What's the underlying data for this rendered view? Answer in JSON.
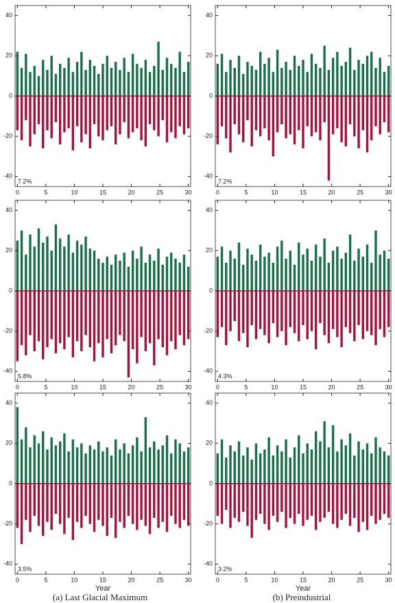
{
  "chart_data": [
    {
      "type": "spike",
      "annotation": "7.2%",
      "x": [
        0,
        0.75,
        1.5,
        2.25,
        3,
        3.75,
        4.5,
        5.25,
        6,
        6.75,
        7.5,
        8.25,
        9,
        9.75,
        10.5,
        11.25,
        12,
        12.75,
        13.5,
        14.25,
        15,
        15.75,
        16.5,
        17.25,
        18,
        18.75,
        19.5,
        20.25,
        21,
        21.75,
        22.5,
        23.25,
        24,
        24.75,
        25.5,
        26.25,
        27,
        27.75,
        28.5,
        29.25,
        30
      ],
      "series": [
        {
          "color": "#17704a",
          "values": [
            22,
            14,
            21,
            12,
            15,
            10,
            18,
            13,
            20,
            11,
            16,
            14,
            19,
            12,
            17,
            22,
            13,
            18,
            15,
            11,
            16,
            20,
            14,
            17,
            13,
            19,
            12,
            21,
            16,
            14,
            18,
            12,
            15,
            27,
            13,
            19,
            16,
            14,
            22,
            12,
            17
          ]
        },
        {
          "color": "#a8103c",
          "values": [
            -17,
            -22,
            -12,
            -25,
            -19,
            -14,
            -26,
            -17,
            -21,
            -13,
            -24,
            -18,
            -16,
            -27,
            -15,
            -23,
            -19,
            -26,
            -14,
            -20,
            -22,
            -17,
            -15,
            -24,
            -19,
            -13,
            -21,
            -18,
            -16,
            -22,
            -25,
            -14,
            -17,
            -20,
            -12,
            -23,
            -18,
            -21,
            -15,
            -19,
            -16
          ]
        }
      ],
      "xlim": [
        -0.4,
        30.4
      ],
      "xticks": [
        0,
        5,
        10,
        15,
        20,
        25,
        30
      ],
      "ylim": [
        -45,
        45
      ],
      "yticks": [
        -40,
        -20,
        0,
        20,
        40
      ]
    },
    {
      "type": "spike",
      "annotation": "7.2%",
      "x": [
        0,
        0.75,
        1.5,
        2.25,
        3,
        3.75,
        4.5,
        5.25,
        6,
        6.75,
        7.5,
        8.25,
        9,
        9.75,
        10.5,
        11.25,
        12,
        12.75,
        13.5,
        14.25,
        15,
        15.75,
        16.5,
        17.25,
        18,
        18.75,
        19.5,
        20.25,
        21,
        21.75,
        22.5,
        23.25,
        24,
        24.75,
        25.5,
        26.25,
        27,
        27.75,
        28.5,
        29.25,
        30
      ],
      "series": [
        {
          "color": "#17704a",
          "values": [
            16,
            21,
            12,
            18,
            14,
            20,
            11,
            17,
            15,
            13,
            22,
            16,
            19,
            12,
            23,
            14,
            17,
            13,
            20,
            15,
            18,
            12,
            21,
            16,
            14,
            25,
            13,
            19,
            22,
            15,
            17,
            24,
            13,
            18,
            16,
            20,
            22,
            14,
            19,
            12,
            15
          ]
        },
        {
          "color": "#a8103c",
          "values": [
            -24,
            -15,
            -21,
            -28,
            -14,
            -19,
            -23,
            -12,
            -25,
            -17,
            -20,
            -16,
            -22,
            -30,
            -18,
            -14,
            -21,
            -19,
            -24,
            -17,
            -26,
            -15,
            -20,
            -18,
            -22,
            -13,
            -42,
            -19,
            -16,
            -23,
            -25,
            -14,
            -20,
            -26,
            -17,
            -28,
            -22,
            -15,
            -19,
            -13,
            -18
          ]
        }
      ],
      "xlim": [
        -0.4,
        30.4
      ],
      "xticks": [
        0,
        5,
        10,
        15,
        20,
        25,
        30
      ],
      "ylim": [
        -45,
        45
      ],
      "yticks": [
        -40,
        -20,
        0,
        20,
        40
      ]
    },
    {
      "type": "spike",
      "annotation": "5.8%",
      "x": [
        0,
        0.75,
        1.5,
        2.25,
        3,
        3.75,
        4.5,
        5.25,
        6,
        6.75,
        7.5,
        8.25,
        9,
        9.75,
        10.5,
        11.25,
        12,
        12.75,
        13.5,
        14.25,
        15,
        15.75,
        16.5,
        17.25,
        18,
        18.75,
        19.5,
        20.25,
        21,
        21.75,
        22.5,
        23.25,
        24,
        24.75,
        25.5,
        26.25,
        27,
        27.75,
        28.5,
        29.25,
        30
      ],
      "series": [
        {
          "color": "#17704a",
          "values": [
            25,
            30,
            18,
            28,
            22,
            31,
            24,
            27,
            20,
            33,
            26,
            22,
            28,
            19,
            25,
            23,
            27,
            21,
            20,
            16,
            14,
            17,
            13,
            18,
            15,
            19,
            12,
            20,
            16,
            22,
            14,
            18,
            15,
            21,
            13,
            17,
            19,
            16,
            14,
            18,
            12
          ]
        },
        {
          "color": "#a8103c",
          "values": [
            -35,
            -27,
            -32,
            -22,
            -30,
            -25,
            -34,
            -28,
            -24,
            -31,
            -26,
            -29,
            -23,
            -33,
            -25,
            -30,
            -22,
            -28,
            -35,
            -26,
            -33,
            -24,
            -31,
            -27,
            -22,
            -25,
            -43,
            -29,
            -36,
            -23,
            -30,
            -26,
            -37,
            -24,
            -28,
            -32,
            -25,
            -29,
            -22,
            -27,
            -24
          ]
        }
      ],
      "xlim": [
        -0.4,
        30.4
      ],
      "xticks": [
        0,
        5,
        10,
        15,
        20,
        25,
        30
      ],
      "ylim": [
        -45,
        45
      ],
      "yticks": [
        -40,
        -20,
        0,
        20,
        40
      ]
    },
    {
      "type": "spike",
      "annotation": "4.3%",
      "x": [
        0,
        0.75,
        1.5,
        2.25,
        3,
        3.75,
        4.5,
        5.25,
        6,
        6.75,
        7.5,
        8.25,
        9,
        9.75,
        10.5,
        11.25,
        12,
        12.75,
        13.5,
        14.25,
        15,
        15.75,
        16.5,
        17.25,
        18,
        18.75,
        19.5,
        20.25,
        21,
        21.75,
        22.5,
        23.25,
        24,
        24.75,
        25.5,
        26.25,
        27,
        27.75,
        28.5,
        29.25,
        30
      ],
      "series": [
        {
          "color": "#17704a",
          "values": [
            17,
            22,
            14,
            20,
            16,
            24,
            13,
            21,
            18,
            15,
            23,
            17,
            19,
            14,
            22,
            25,
            16,
            20,
            13,
            24,
            18,
            21,
            15,
            23,
            17,
            26,
            14,
            20,
            22,
            16,
            19,
            28,
            15,
            21,
            17,
            23,
            14,
            30,
            18,
            20,
            16
          ]
        },
        {
          "color": "#a8103c",
          "values": [
            -23,
            -18,
            -27,
            -20,
            -15,
            -25,
            -21,
            -28,
            -17,
            -24,
            -19,
            -22,
            -26,
            -16,
            -23,
            -20,
            -27,
            -18,
            -21,
            -25,
            -17,
            -24,
            -20,
            -29,
            -16,
            -22,
            -26,
            -19,
            -23,
            -28,
            -18,
            -21,
            -25,
            -17,
            -24,
            -20,
            -22,
            -27,
            -19,
            -23,
            -18
          ]
        }
      ],
      "xlim": [
        -0.4,
        30.4
      ],
      "xticks": [
        0,
        5,
        10,
        15,
        20,
        25,
        30
      ],
      "ylim": [
        -45,
        45
      ],
      "yticks": [
        -40,
        -20,
        0,
        20,
        40
      ]
    },
    {
      "type": "spike",
      "annotation": "3.5%",
      "xlabel": "Year",
      "x": [
        0,
        0.75,
        1.5,
        2.25,
        3,
        3.75,
        4.5,
        5.25,
        6,
        6.75,
        7.5,
        8.25,
        9,
        9.75,
        10.5,
        11.25,
        12,
        12.75,
        13.5,
        14.25,
        15,
        15.75,
        16.5,
        17.25,
        18,
        18.75,
        19.5,
        20.25,
        21,
        21.75,
        22.5,
        23.25,
        24,
        24.75,
        25.5,
        26.25,
        27,
        27.75,
        28.5,
        29.25,
        30
      ],
      "series": [
        {
          "color": "#17704a",
          "values": [
            38,
            22,
            28,
            18,
            24,
            20,
            26,
            17,
            23,
            19,
            21,
            25,
            16,
            22,
            18,
            20,
            15,
            19,
            17,
            21,
            16,
            18,
            14,
            22,
            17,
            20,
            15,
            19,
            23,
            16,
            33,
            18,
            21,
            17,
            19,
            24,
            15,
            22,
            20,
            16,
            18
          ]
        },
        {
          "color": "#a8103c",
          "values": [
            -22,
            -30,
            -18,
            -24,
            -16,
            -21,
            -26,
            -19,
            -23,
            -15,
            -20,
            -25,
            -17,
            -28,
            -19,
            -22,
            -16,
            -20,
            -24,
            -18,
            -21,
            -26,
            -17,
            -27,
            -19,
            -22,
            -16,
            -20,
            -23,
            -18,
            -21,
            -25,
            -17,
            -22,
            -19,
            -24,
            -16,
            -20,
            -22,
            -18,
            -21
          ]
        }
      ],
      "xlim": [
        -0.4,
        30.4
      ],
      "xticks": [
        0,
        5,
        10,
        15,
        20,
        25,
        30
      ],
      "ylim": [
        -45,
        45
      ],
      "yticks": [
        -40,
        -20,
        0,
        20,
        40
      ]
    },
    {
      "type": "spike",
      "annotation": "3.2%",
      "xlabel": "Year",
      "x": [
        0,
        0.75,
        1.5,
        2.25,
        3,
        3.75,
        4.5,
        5.25,
        6,
        6.75,
        7.5,
        8.25,
        9,
        9.75,
        10.5,
        11.25,
        12,
        12.75,
        13.5,
        14.25,
        15,
        15.75,
        16.5,
        17.25,
        18,
        18.75,
        19.5,
        20.25,
        21,
        21.75,
        22.5,
        23.25,
        24,
        24.75,
        25.5,
        26.25,
        27,
        27.75,
        28.5,
        29.25,
        30
      ],
      "series": [
        {
          "color": "#17704a",
          "values": [
            15,
            22,
            13,
            19,
            16,
            21,
            14,
            18,
            12,
            20,
            15,
            17,
            23,
            14,
            19,
            16,
            22,
            13,
            18,
            24,
            15,
            20,
            17,
            26,
            21,
            31,
            18,
            29,
            16,
            22,
            19,
            25,
            14,
            21,
            17,
            20,
            15,
            23,
            18,
            16,
            14
          ]
        },
        {
          "color": "#a8103c",
          "values": [
            -16,
            -20,
            -13,
            -22,
            -17,
            -19,
            -14,
            -21,
            -27,
            -18,
            -15,
            -20,
            -23,
            -16,
            -19,
            -14,
            -22,
            -17,
            -20,
            -15,
            -21,
            -18,
            -16,
            -23,
            -19,
            -17,
            -14,
            -20,
            -22,
            -18,
            -15,
            -21,
            -17,
            -24,
            -19,
            -23,
            -16,
            -20,
            -18,
            -15,
            -17
          ]
        }
      ],
      "xlim": [
        -0.4,
        30.4
      ],
      "xticks": [
        0,
        5,
        10,
        15,
        20,
        25,
        30
      ],
      "ylim": [
        -45,
        45
      ],
      "yticks": [
        -40,
        -20,
        0,
        20,
        40
      ]
    }
  ],
  "captions": [
    "(a) Last Glacial Maximum",
    "(b) Preindustrial"
  ]
}
